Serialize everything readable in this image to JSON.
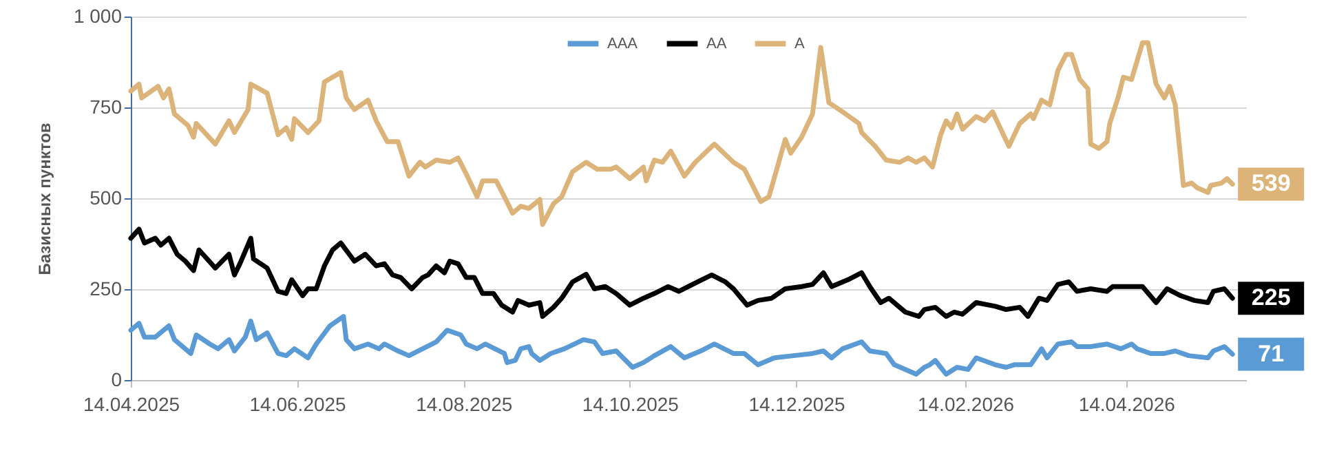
{
  "chart_data": {
    "type": "line",
    "ylabel": "Базисных пунктов",
    "xlim": [
      "2025-04-14",
      "2026-05-28"
    ],
    "ylim": [
      0,
      1000
    ],
    "xticks": [
      {
        "value": "2025-04-14",
        "label": "14.04.2025"
      },
      {
        "value": "2025-06-14",
        "label": "14.06.2025"
      },
      {
        "value": "2025-08-14",
        "label": "14.08.2025"
      },
      {
        "value": "2025-10-14",
        "label": "14.10.2025"
      },
      {
        "value": "2025-12-14",
        "label": "14.12.2025"
      },
      {
        "value": "2026-02-14",
        "label": "14.02.2026"
      },
      {
        "value": "2026-04-14",
        "label": "14.04.2026"
      }
    ],
    "yticks": [
      {
        "value": 0,
        "label": "0"
      },
      {
        "value": 250,
        "label": "250"
      },
      {
        "value": 500,
        "label": "500"
      },
      {
        "value": 750,
        "label": "750"
      },
      {
        "value": 1000,
        "label": "1 000"
      }
    ],
    "grid": "y",
    "legend": "top",
    "marker": "none",
    "line_style": "solid",
    "series": [
      {
        "name": "AAA",
        "color": "#5b9bd5",
        "x": [
          "2025-04-14",
          "2025-04-17",
          "2025-04-19",
          "2025-04-23",
          "2025-04-26",
          "2025-04-28",
          "2025-04-30",
          "2025-05-06",
          "2025-05-08",
          "2025-05-13",
          "2025-05-16",
          "2025-05-20",
          "2025-05-22",
          "2025-05-26",
          "2025-05-28",
          "2025-05-30",
          "2025-06-03",
          "2025-06-07",
          "2025-06-10",
          "2025-06-13",
          "2025-06-18",
          "2025-06-21",
          "2025-06-26",
          "2025-07-01",
          "2025-07-02",
          "2025-07-05",
          "2025-07-10",
          "2025-07-14",
          "2025-07-16",
          "2025-07-21",
          "2025-07-25",
          "2025-07-30",
          "2025-08-04",
          "2025-08-08",
          "2025-08-13",
          "2025-08-15",
          "2025-08-19",
          "2025-08-22",
          "2025-08-29",
          "2025-08-30",
          "2025-09-02",
          "2025-09-04",
          "2025-09-07",
          "2025-09-08",
          "2025-09-11",
          "2025-09-15",
          "2025-09-20",
          "2025-09-27",
          "2025-10-01",
          "2025-10-04",
          "2025-10-09",
          "2025-10-15",
          "2025-10-19",
          "2025-10-23",
          "2025-10-29",
          "2025-11-03",
          "2025-11-09",
          "2025-11-14",
          "2025-11-21",
          "2025-11-25",
          "2025-11-30",
          "2025-12-06",
          "2025-12-13",
          "2025-12-20",
          "2025-12-24",
          "2025-12-27",
          "2025-12-31",
          "2026-01-07",
          "2026-01-10",
          "2026-01-16",
          "2026-01-19",
          "2026-01-27",
          "2026-01-30",
          "2026-02-01",
          "2026-02-03",
          "2026-02-07",
          "2026-02-11",
          "2026-02-15",
          "2026-02-18",
          "2026-02-25",
          "2026-03-01",
          "2026-03-04",
          "2026-03-10",
          "2026-03-14",
          "2026-03-16",
          "2026-03-20",
          "2026-03-25",
          "2026-03-27",
          "2026-04-01",
          "2026-04-07",
          "2026-04-12",
          "2026-04-16",
          "2026-04-18",
          "2026-04-23",
          "2026-04-28",
          "2026-05-02",
          "2026-05-07",
          "2026-05-14",
          "2026-05-16",
          "2026-05-20",
          "2026-05-23"
        ],
        "values": [
          137,
          156,
          118,
          118,
          137,
          149,
          111,
          73,
          124,
          99,
          86,
          111,
          80,
          118,
          162,
          111,
          130,
          73,
          67,
          86,
          61,
          99,
          149,
          175,
          111,
          86,
          99,
          86,
          99,
          80,
          67,
          86,
          105,
          137,
          124,
          99,
          86,
          99,
          73,
          48,
          54,
          86,
          92,
          73,
          54,
          73,
          86,
          111,
          105,
          73,
          80,
          35,
          48,
          67,
          92,
          61,
          80,
          99,
          73,
          73,
          42,
          61,
          67,
          73,
          80,
          61,
          86,
          105,
          80,
          73,
          42,
          16,
          35,
          42,
          54,
          16,
          35,
          29,
          61,
          42,
          35,
          42,
          42,
          86,
          61,
          99,
          105,
          92,
          92,
          99,
          86,
          99,
          86,
          73,
          73,
          80,
          67,
          61,
          80,
          92,
          71
        ]
      },
      {
        "name": "AA",
        "color": "#000000",
        "x": [
          "2025-04-14",
          "2025-04-17",
          "2025-04-19",
          "2025-04-23",
          "2025-04-25",
          "2025-04-28",
          "2025-05-01",
          "2025-05-04",
          "2025-05-07",
          "2025-05-09",
          "2025-05-15",
          "2025-05-20",
          "2025-05-22",
          "2025-05-24",
          "2025-05-28",
          "2025-05-29",
          "2025-06-03",
          "2025-06-07",
          "2025-06-10",
          "2025-06-12",
          "2025-06-16",
          "2025-06-18",
          "2025-06-21",
          "2025-06-24",
          "2025-06-27",
          "2025-06-30",
          "2025-07-05",
          "2025-07-09",
          "2025-07-13",
          "2025-07-16",
          "2025-07-19",
          "2025-07-22",
          "2025-07-26",
          "2025-07-30",
          "2025-08-01",
          "2025-08-04",
          "2025-08-07",
          "2025-08-09",
          "2025-08-12",
          "2025-08-15",
          "2025-08-18",
          "2025-08-21",
          "2025-08-25",
          "2025-08-28",
          "2025-09-01",
          "2025-09-03",
          "2025-09-07",
          "2025-09-11",
          "2025-09-12",
          "2025-09-16",
          "2025-09-19",
          "2025-09-23",
          "2025-09-28",
          "2025-10-01",
          "2025-10-05",
          "2025-10-09",
          "2025-10-14",
          "2025-10-19",
          "2025-10-23",
          "2025-10-28",
          "2025-11-01",
          "2025-11-06",
          "2025-11-13",
          "2025-11-18",
          "2025-11-21",
          "2025-11-26",
          "2025-11-30",
          "2025-12-05",
          "2025-12-10",
          "2025-12-16",
          "2025-12-20",
          "2025-12-24",
          "2025-12-27",
          "2026-01-02",
          "2026-01-07",
          "2026-01-10",
          "2026-01-14",
          "2026-01-17",
          "2026-01-23",
          "2026-01-28",
          "2026-01-30",
          "2026-02-03",
          "2026-02-07",
          "2026-02-10",
          "2026-02-13",
          "2026-02-18",
          "2026-02-25",
          "2026-03-01",
          "2026-03-06",
          "2026-03-09",
          "2026-03-13",
          "2026-03-16",
          "2026-03-20",
          "2026-03-24",
          "2026-03-27",
          "2026-04-01",
          "2026-04-07",
          "2026-04-09",
          "2026-04-15",
          "2026-04-20",
          "2026-04-25",
          "2026-04-29",
          "2026-05-04",
          "2026-05-09",
          "2026-05-14",
          "2026-05-16",
          "2026-05-20",
          "2026-05-23"
        ],
        "values": [
          390,
          415,
          377,
          390,
          371,
          390,
          346,
          327,
          301,
          358,
          308,
          346,
          289,
          320,
          390,
          333,
          308,
          244,
          238,
          276,
          232,
          251,
          251,
          314,
          358,
          377,
          327,
          346,
          314,
          320,
          289,
          282,
          251,
          282,
          289,
          314,
          295,
          327,
          320,
          282,
          282,
          238,
          238,
          206,
          187,
          219,
          206,
          213,
          175,
          200,
          225,
          270,
          291,
          251,
          257,
          238,
          206,
          225,
          238,
          257,
          244,
          263,
          289,
          270,
          251,
          206,
          219,
          225,
          251,
          257,
          263,
          295,
          257,
          276,
          295,
          257,
          213,
          225,
          187,
          175,
          194,
          200,
          175,
          187,
          181,
          213,
          203,
          194,
          200,
          175,
          225,
          219,
          263,
          270,
          244,
          251,
          244,
          257,
          257,
          257,
          213,
          251,
          232,
          219,
          213,
          244,
          251,
          225
        ]
      },
      {
        "name": "A",
        "color": "#dcb47a",
        "x": [
          "2025-04-14",
          "2025-04-17",
          "2025-04-18",
          "2025-04-24",
          "2025-04-26",
          "2025-04-28",
          "2025-04-30",
          "2025-05-05",
          "2025-05-07",
          "2025-05-08",
          "2025-05-15",
          "2025-05-20",
          "2025-05-22",
          "2025-05-27",
          "2025-05-28",
          "2025-06-03",
          "2025-06-07",
          "2025-06-10",
          "2025-06-12",
          "2025-06-13",
          "2025-06-18",
          "2025-06-22",
          "2025-06-24",
          "2025-06-30",
          "2025-07-02",
          "2025-07-05",
          "2025-07-10",
          "2025-07-13",
          "2025-07-17",
          "2025-07-21",
          "2025-07-25",
          "2025-07-29",
          "2025-07-31",
          "2025-08-04",
          "2025-08-09",
          "2025-08-12",
          "2025-08-15",
          "2025-08-19",
          "2025-08-21",
          "2025-08-26",
          "2025-08-29",
          "2025-09-01",
          "2025-09-04",
          "2025-09-07",
          "2025-09-11",
          "2025-09-12",
          "2025-09-16",
          "2025-09-19",
          "2025-09-23",
          "2025-09-28",
          "2025-10-02",
          "2025-10-07",
          "2025-10-09",
          "2025-10-14",
          "2025-10-19",
          "2025-10-20",
          "2025-10-23",
          "2025-10-26",
          "2025-10-29",
          "2025-11-03",
          "2025-11-07",
          "2025-11-14",
          "2025-11-21",
          "2025-11-25",
          "2025-12-01",
          "2025-12-04",
          "2025-12-10",
          "2025-12-12",
          "2025-12-16",
          "2025-12-20",
          "2025-12-23",
          "2025-12-26",
          "2025-12-31",
          "2026-01-06",
          "2026-01-07",
          "2026-01-12",
          "2026-01-16",
          "2026-01-21",
          "2026-01-24",
          "2026-01-27",
          "2026-01-30",
          "2026-02-02",
          "2026-02-05",
          "2026-02-07",
          "2026-02-09",
          "2026-02-11",
          "2026-02-13",
          "2026-02-18",
          "2026-02-21",
          "2026-02-24",
          "2026-03-02",
          "2026-03-06",
          "2026-03-10",
          "2026-03-11",
          "2026-03-14",
          "2026-03-17",
          "2026-03-20",
          "2026-03-23",
          "2026-03-25",
          "2026-03-28",
          "2026-03-31",
          "2026-04-01",
          "2026-04-04",
          "2026-04-07",
          "2026-04-08",
          "2026-04-11",
          "2026-04-13",
          "2026-04-16",
          "2026-04-20",
          "2026-04-22",
          "2026-04-25",
          "2026-04-28",
          "2026-04-30",
          "2026-05-02",
          "2026-05-05",
          "2026-05-08",
          "2026-05-10",
          "2026-05-14",
          "2026-05-15",
          "2026-05-19",
          "2026-05-21",
          "2026-05-23"
        ],
        "values": [
          795,
          814,
          776,
          808,
          776,
          801,
          732,
          700,
          668,
          706,
          649,
          713,
          681,
          744,
          814,
          789,
          675,
          694,
          662,
          719,
          681,
          713,
          820,
          846,
          776,
          744,
          770,
          713,
          656,
          656,
          561,
          599,
          586,
          605,
          599,
          611,
          567,
          504,
          548,
          548,
          504,
          459,
          478,
          472,
          497,
          428,
          485,
          504,
          573,
          599,
          580,
          580,
          586,
          554,
          586,
          548,
          605,
          599,
          630,
          561,
          599,
          649,
          599,
          580,
          491,
          504,
          662,
          624,
          668,
          732,
          915,
          763,
          738,
          706,
          681,
          643,
          605,
          599,
          611,
          599,
          611,
          586,
          675,
          713,
          694,
          732,
          690,
          725,
          713,
          738,
          643,
          706,
          732,
          719,
          770,
          757,
          852,
          896,
          896,
          827,
          801,
          649,
          637,
          656,
          706,
          776,
          833,
          827,
          928,
          928,
          814,
          776,
          808,
          757,
          535,
          542,
          529,
          516,
          535,
          542,
          554,
          539
        ]
      }
    ],
    "annotations": [
      {
        "text": "71",
        "x": "2026-05-23",
        "y": 71
      },
      {
        "text": "225",
        "x": "2026-05-23",
        "y": 225
      },
      {
        "text": "539",
        "x": "2026-05-23",
        "y": 539
      }
    ]
  }
}
